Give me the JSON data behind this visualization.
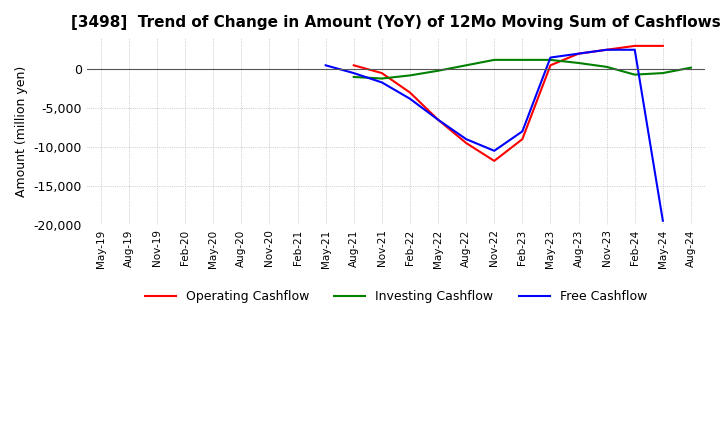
{
  "title": "[3498]  Trend of Change in Amount (YoY) of 12Mo Moving Sum of Cashflows",
  "ylabel": "Amount (million yen)",
  "ylim": [
    -20000,
    4000
  ],
  "yticks": [
    0,
    -5000,
    -10000,
    -15000,
    -20000
  ],
  "dates": [
    "May-19",
    "Aug-19",
    "Nov-19",
    "Feb-20",
    "May-20",
    "Aug-20",
    "Nov-20",
    "Feb-21",
    "May-21",
    "Aug-21",
    "Nov-21",
    "Feb-22",
    "May-22",
    "Aug-22",
    "Nov-22",
    "Feb-23",
    "May-23",
    "Aug-23",
    "Nov-23",
    "Feb-24",
    "May-24",
    "Aug-24"
  ],
  "operating": [
    null,
    null,
    null,
    null,
    null,
    null,
    null,
    null,
    null,
    null,
    null,
    null,
    null,
    null,
    null,
    null,
    null,
    null,
    null,
    null,
    null,
    null
  ],
  "operating_pts": {
    "Aug-21": 500,
    "Nov-21": -500,
    "Feb-22": -3000,
    "May-22": -6500,
    "Aug-22": -9500,
    "Nov-22": -11800,
    "Feb-23": -9000,
    "May-23": 500,
    "Aug-23": 2000,
    "Nov-23": 2500,
    "Feb-24": 3000,
    "May-24": 3000
  },
  "investing_pts": {
    "Aug-21": -1000,
    "Nov-21": -1200,
    "Feb-22": -800,
    "May-22": -200,
    "Aug-22": 500,
    "Nov-22": 1200,
    "Feb-23": 1200,
    "May-23": 1200,
    "Aug-23": 800,
    "Nov-23": 300,
    "Feb-24": -700,
    "May-24": -500,
    "Aug-24": 200
  },
  "free_pts": {
    "May-21": 500,
    "Aug-21": -500,
    "Nov-21": -1700,
    "Feb-22": -3800,
    "May-22": -6500,
    "Aug-22": -9000,
    "Nov-22": -10500,
    "Feb-23": -8000,
    "May-23": 1500,
    "Aug-23": 2000,
    "Nov-23": 2500,
    "Feb-24": 2500,
    "May-24": -19500
  },
  "operating_color": "#ff0000",
  "investing_color": "#008000",
  "free_color": "#0000ff",
  "background_color": "#ffffff",
  "title_fontsize": 11,
  "legend_fontsize": 9
}
